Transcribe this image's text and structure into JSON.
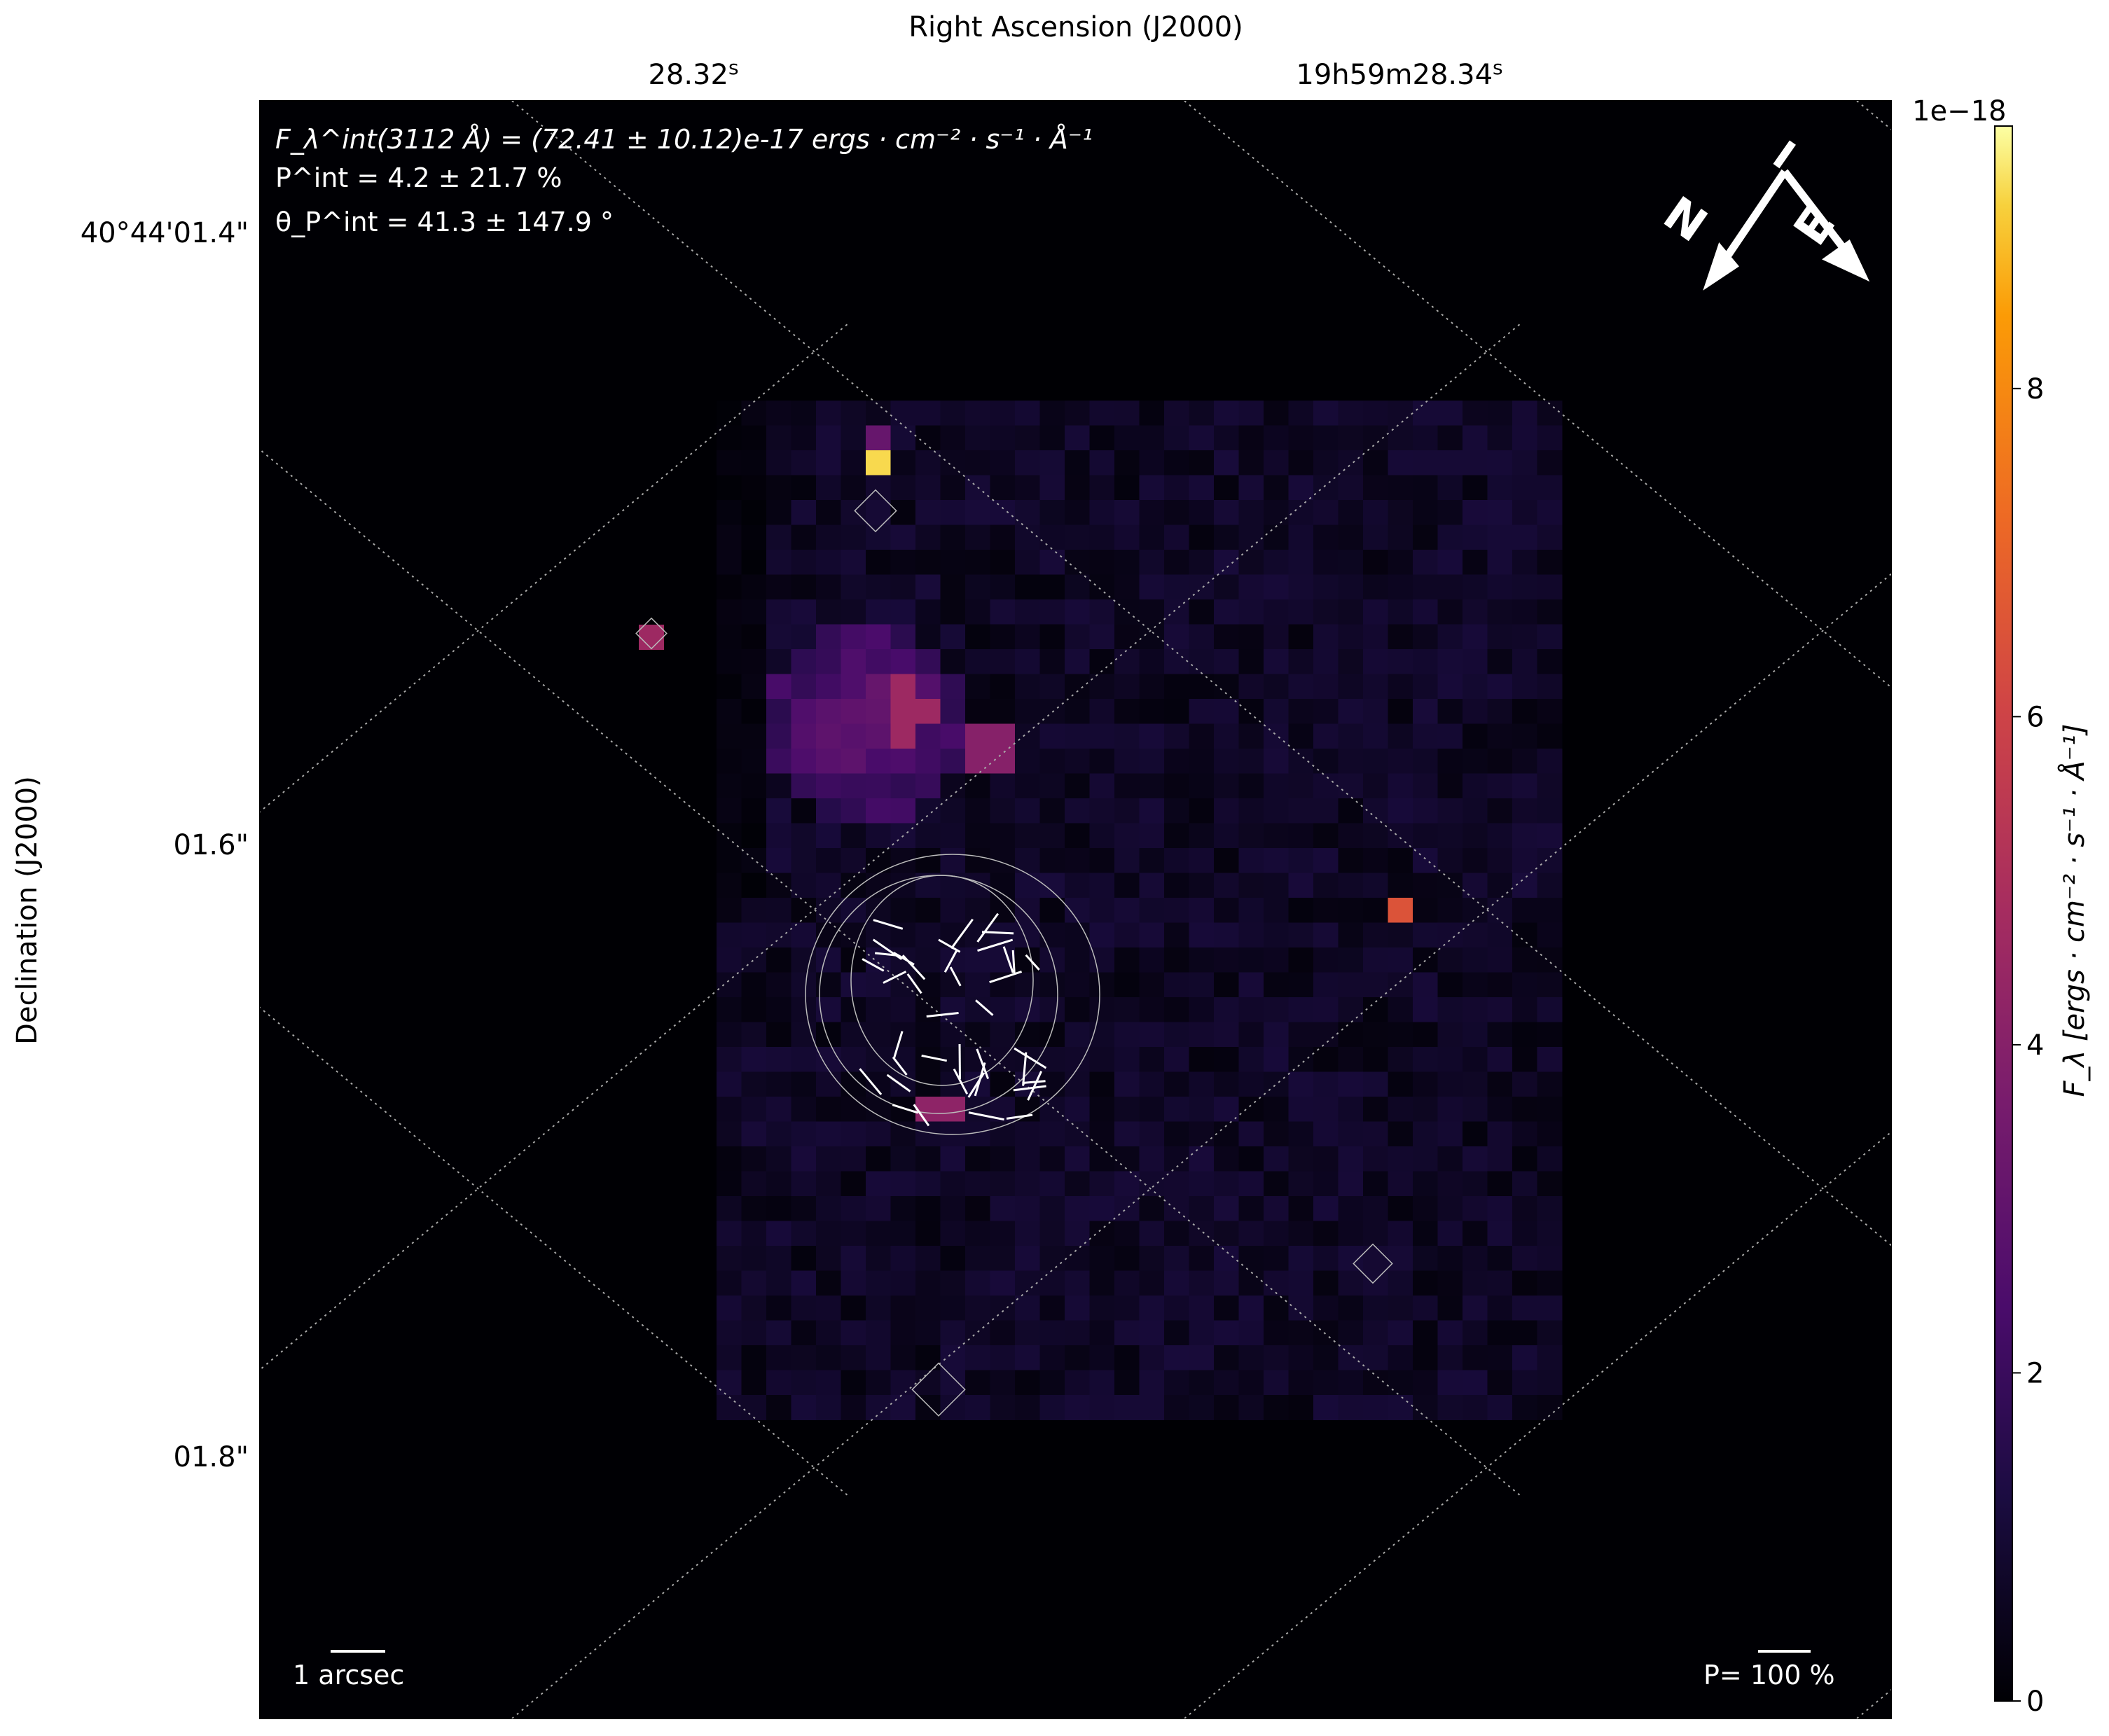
{
  "chart_data": {
    "type": "heatmap",
    "xlabel": "Right Ascension (J2000)",
    "ylabel": "Declination (J2000)",
    "x_ticks": [
      {
        "label": "28.32",
        "sup": "s"
      },
      {
        "label": "19h59m28.34",
        "sup": "s"
      }
    ],
    "y_ticks": [
      "40°44'01.4\"",
      "01.6\"",
      "01.8\""
    ],
    "colormap": "inferno",
    "colorbar": {
      "label": "F_λ [ergs · cm⁻² · s⁻¹ · Å⁻¹]",
      "offset_text": "1e−18",
      "ticks": [
        0,
        2,
        4,
        6,
        8
      ],
      "range": [
        0,
        9.6
      ]
    },
    "annotations": {
      "flux": "F_λ^int(3112 Å) = (72.41 ± 10.12)e-17 ergs · cm⁻² · s⁻¹ · Å⁻¹",
      "pol": "P^int = 4.2 ± 21.7 %",
      "angle": "θ_P^int = 41.3 ± 147.9 °",
      "scalebar": "1 arcsec",
      "pol_scale": "P= 100 %",
      "compass_n": "N",
      "compass_e": "E"
    },
    "bright_sources": [
      {
        "name": "",
        "value": 9.2
      },
      {
        "value": 4.6
      },
      {
        "value": 4.5
      },
      {
        "value": 4.0
      },
      {
        "value": 6.5
      },
      {
        "value": 4.2
      }
    ],
    "grid": "dotted-wcs"
  }
}
